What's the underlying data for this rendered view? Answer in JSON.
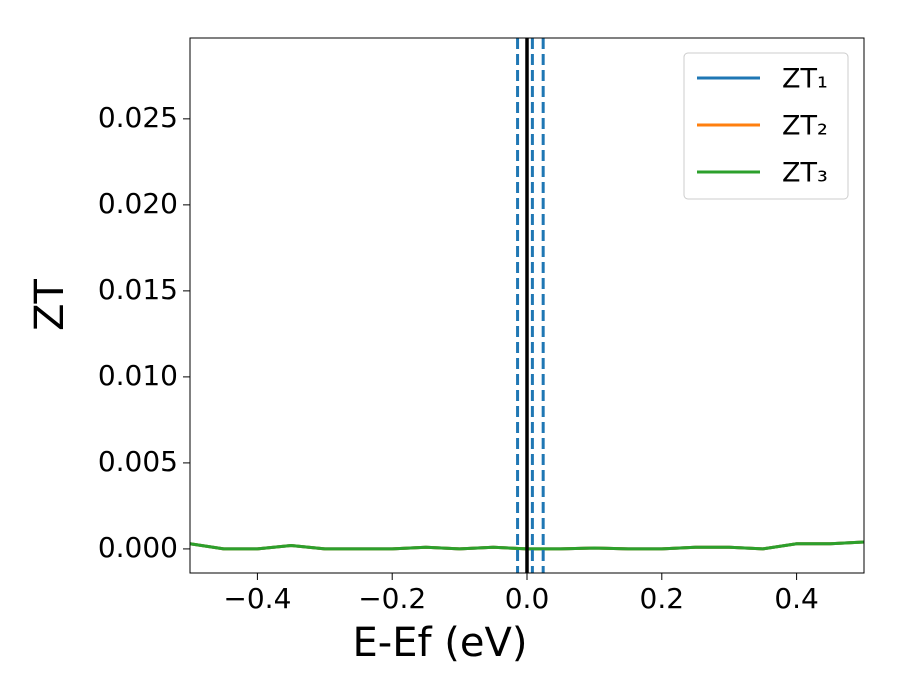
{
  "chart_data": {
    "type": "line",
    "x_label": "E-Ef (eV)",
    "y_label": "ZT",
    "x": [
      -0.5,
      -0.45,
      -0.4,
      -0.35,
      -0.3,
      -0.25,
      -0.2,
      -0.15,
      -0.1,
      -0.05,
      0,
      0.05,
      0.1,
      0.15,
      0.2,
      0.25,
      0.3,
      0.35,
      0.4,
      0.45,
      0.5
    ],
    "series": [
      {
        "name": "ZT₁",
        "color": "#1f77b4",
        "values": [
          0.0003,
          0.0,
          0.0,
          0.0002,
          0.0,
          0.0,
          0.0,
          0.0001,
          0.0,
          0.0001,
          0.0,
          0.0,
          5e-05,
          0.0,
          0.0,
          0.0001,
          0.0001,
          0.0,
          0.0003,
          0.0003,
          0.0004
        ]
      },
      {
        "name": "ZT₂",
        "color": "#ff7f0e",
        "values": [
          0.0003,
          0.0,
          0.0,
          0.0002,
          0.0,
          0.0,
          0.0,
          0.0001,
          0.0,
          0.0001,
          0.0,
          0.0,
          5e-05,
          0.0,
          0.0,
          0.0001,
          0.0001,
          0.0,
          0.0003,
          0.0003,
          0.0004
        ]
      },
      {
        "name": "ZT₃",
        "color": "#2ca02c",
        "values": [
          0.0003,
          0.0,
          0.0,
          0.0002,
          0.0,
          0.0,
          0.0,
          0.0001,
          0.0,
          0.0001,
          0.0,
          0.0,
          5e-05,
          0.0,
          0.0,
          0.0001,
          0.0001,
          0.0,
          0.0003,
          0.0003,
          0.0004
        ]
      }
    ],
    "vlines": [
      {
        "x": 0,
        "color": "#000000",
        "style": "solid"
      },
      {
        "x": -0.014,
        "color": "#1f77b4",
        "style": "dashed"
      },
      {
        "x": 0.008,
        "color": "#1f77b4",
        "style": "dashed"
      },
      {
        "x": 0.024,
        "color": "#1f77b4",
        "style": "dashed"
      }
    ],
    "xlim": [
      -0.5,
      0.5
    ],
    "ylim": [
      -0.0014,
      0.0297
    ],
    "xticks": [
      {
        "value": -0.4,
        "label": "−0.4"
      },
      {
        "value": -0.2,
        "label": "−0.2"
      },
      {
        "value": 0,
        "label": "0.0"
      },
      0.2,
      0.4
    ],
    "yticks": [
      {
        "value": 0,
        "label": "0.000"
      },
      0.005,
      {
        "value": 0.01,
        "label": "0.010"
      },
      0.015,
      {
        "value": 0.02,
        "label": "0.020"
      },
      0.025
    ],
    "grid": false,
    "legend": "upper right"
  }
}
